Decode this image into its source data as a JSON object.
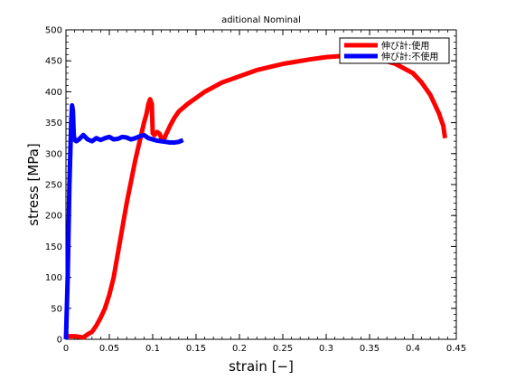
{
  "chart_data": {
    "type": "line",
    "title": "aditional Nominal",
    "xlabel": "strain [−]",
    "ylabel": "stress [MPa]",
    "xlim": [
      0,
      0.45
    ],
    "ylim": [
      0,
      500
    ],
    "x_ticks": [
      "0",
      "0.05",
      "0.1",
      "0.15",
      "0.2",
      "0.25",
      "0.3",
      "0.35",
      "0.4",
      "0.45"
    ],
    "y_ticks": [
      "0",
      "50",
      "100",
      "150",
      "200",
      "250",
      "300",
      "350",
      "400",
      "450",
      "500"
    ],
    "grid": false,
    "legend_position": "top-right",
    "series": [
      {
        "name": "伸び計:使用",
        "color": "#ff0000",
        "x": [
          0.0,
          0.01,
          0.02,
          0.025,
          0.03,
          0.035,
          0.04,
          0.045,
          0.05,
          0.055,
          0.06,
          0.065,
          0.07,
          0.075,
          0.08,
          0.085,
          0.09,
          0.093,
          0.095,
          0.097,
          0.099,
          0.1,
          0.102,
          0.105,
          0.108,
          0.11,
          0.112,
          0.115,
          0.12,
          0.125,
          0.13,
          0.14,
          0.15,
          0.16,
          0.18,
          0.2,
          0.22,
          0.25,
          0.28,
          0.3,
          0.32,
          0.34,
          0.36,
          0.38,
          0.4,
          0.41,
          0.42,
          0.43,
          0.435,
          0.437
        ],
        "y": [
          5,
          5,
          3,
          8,
          12,
          22,
          35,
          50,
          72,
          100,
          140,
          180,
          220,
          255,
          290,
          320,
          350,
          365,
          380,
          388,
          380,
          333,
          330,
          335,
          332,
          325,
          320,
          330,
          345,
          358,
          368,
          380,
          390,
          400,
          415,
          425,
          435,
          445,
          452,
          456,
          458,
          457,
          453,
          445,
          430,
          415,
          395,
          365,
          345,
          325
        ]
      },
      {
        "name": "伸び計:不使用",
        "color": "#0000ff",
        "x": [
          0.0,
          0.002,
          0.004,
          0.006,
          0.007,
          0.008,
          0.009,
          0.01,
          0.012,
          0.015,
          0.02,
          0.025,
          0.03,
          0.035,
          0.04,
          0.045,
          0.05,
          0.055,
          0.06,
          0.065,
          0.07,
          0.075,
          0.08,
          0.085,
          0.09,
          0.095,
          0.1,
          0.105,
          0.11,
          0.115,
          0.12,
          0.125,
          0.13,
          0.135
        ],
        "y": [
          0,
          100,
          250,
          350,
          378,
          370,
          330,
          322,
          320,
          323,
          330,
          323,
          320,
          325,
          322,
          325,
          327,
          323,
          324,
          327,
          326,
          323,
          325,
          328,
          330,
          325,
          323,
          321,
          320,
          319,
          318,
          318,
          319,
          322
        ]
      }
    ]
  }
}
